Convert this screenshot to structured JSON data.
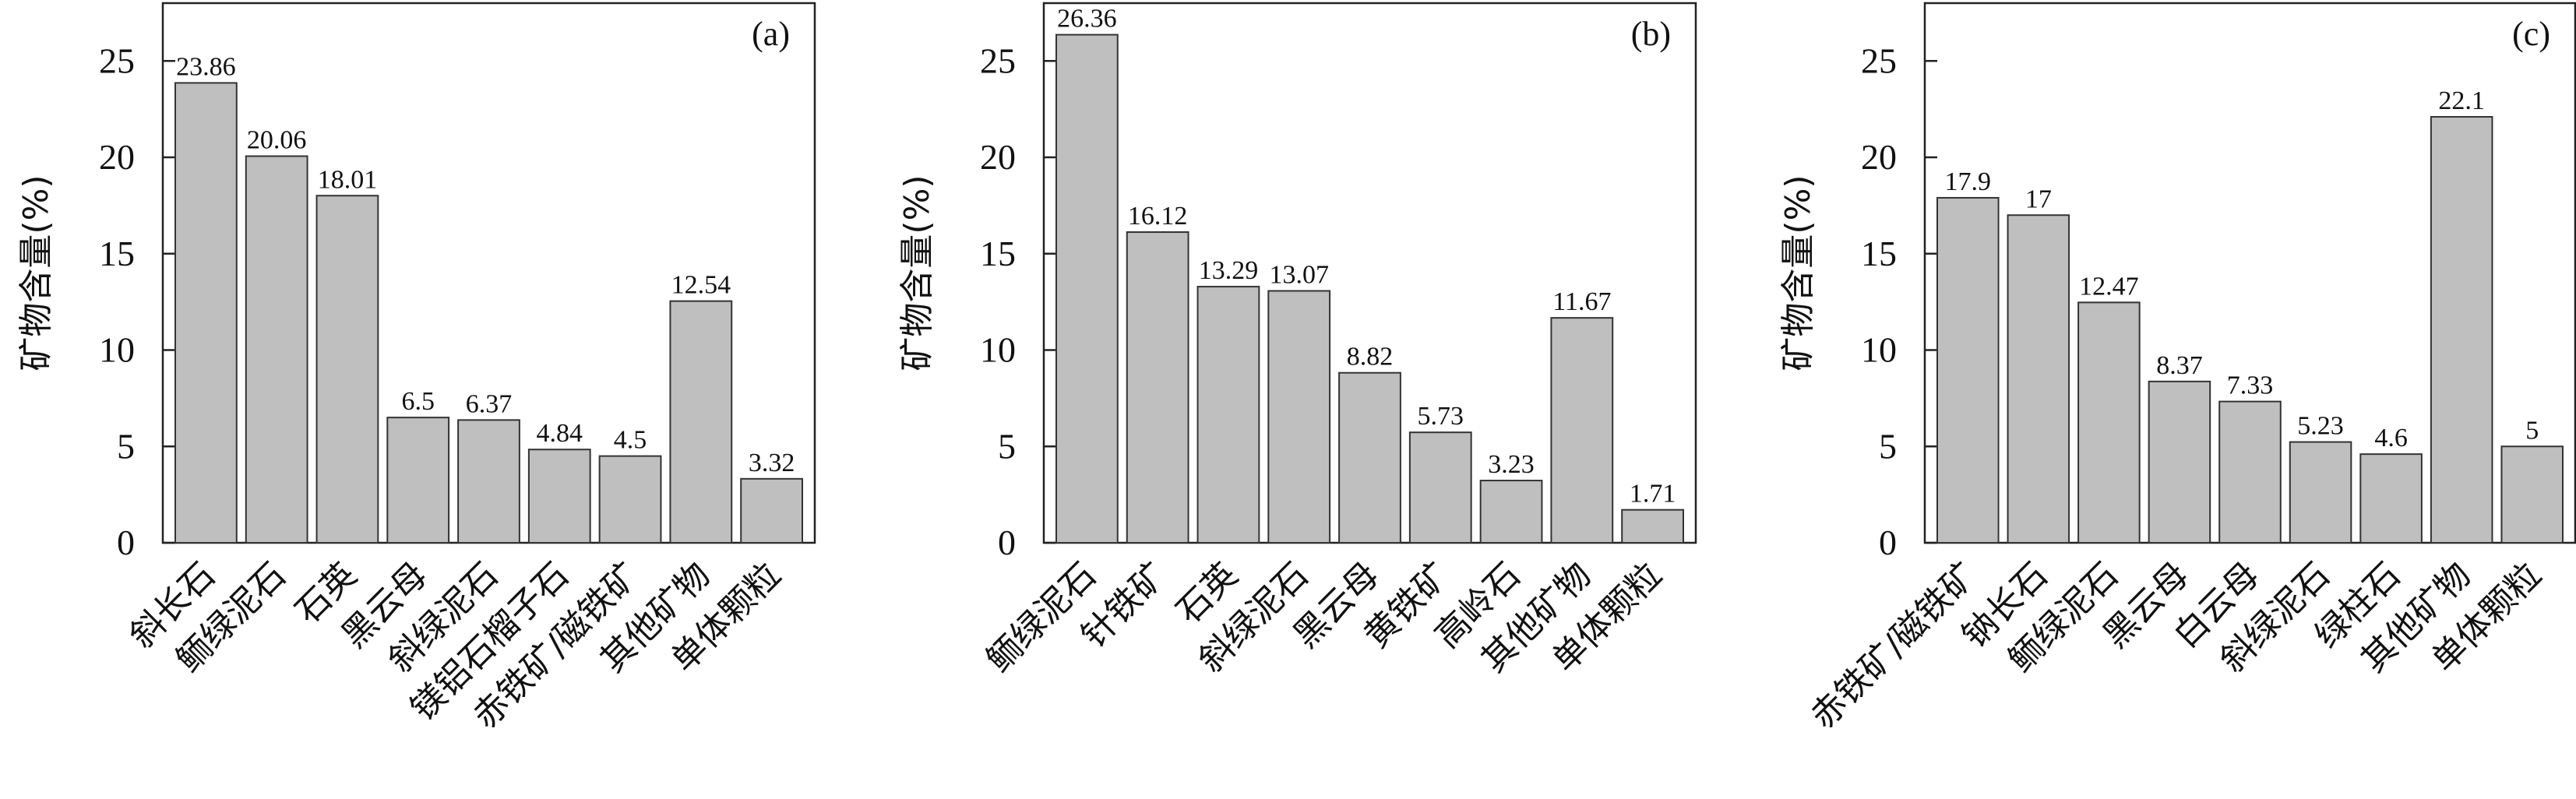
{
  "chart_data": [
    {
      "type": "bar",
      "panel_label": "(a)",
      "ylabel": "矿物含量(%)",
      "ylim": [
        0,
        28
      ],
      "yticks": [
        "0",
        "5",
        "10",
        "15",
        "20",
        "25"
      ],
      "grid": false,
      "bar_color": "#bfbfbf",
      "categories": [
        "斜长石",
        "鲕绿泥石",
        "石英",
        "黑云母",
        "斜绿泥石",
        "镁铝石榴子石",
        "赤铁矿/磁铁矿",
        "其他矿物",
        "单体颗粒"
      ],
      "values": [
        23.86,
        20.06,
        18.01,
        6.5,
        6.37,
        4.84,
        4.5,
        12.54,
        3.32
      ],
      "value_labels": [
        "23.86",
        "20.06",
        "18.01",
        "6.5",
        "6.37",
        "4.84",
        "4.5",
        "12.54",
        "3.32"
      ]
    },
    {
      "type": "bar",
      "panel_label": "(b)",
      "ylabel": "矿物含量(%)",
      "ylim": [
        0,
        28
      ],
      "yticks": [
        "0",
        "5",
        "10",
        "15",
        "20",
        "25"
      ],
      "grid": false,
      "bar_color": "#bfbfbf",
      "categories": [
        "鲕绿泥石",
        "针铁矿",
        "石英",
        "斜绿泥石",
        "黑云母",
        "黄铁矿",
        "高岭石",
        "其他矿物",
        "单体颗粒"
      ],
      "values": [
        26.36,
        16.12,
        13.29,
        13.07,
        8.82,
        5.73,
        3.23,
        11.67,
        1.71
      ],
      "value_labels": [
        "26.36",
        "16.12",
        "13.29",
        "13.07",
        "8.82",
        "5.73",
        "3.23",
        "11.67",
        "1.71"
      ]
    },
    {
      "type": "bar",
      "panel_label": "(c)",
      "ylabel": "矿物含量(%)",
      "ylim": [
        0,
        28
      ],
      "yticks": [
        "0",
        "5",
        "10",
        "15",
        "20",
        "25"
      ],
      "grid": false,
      "bar_color": "#bfbfbf",
      "categories": [
        "赤铁矿/磁铁矿",
        "钠长石",
        "鲕绿泥石",
        "黑云母",
        "白云母",
        "斜绿泥石",
        "绿柱石",
        "其他矿物",
        "单体颗粒"
      ],
      "values": [
        17.9,
        17,
        12.47,
        8.37,
        7.33,
        5.23,
        4.6,
        22.1,
        5
      ],
      "value_labels": [
        "17.9",
        "17",
        "12.47",
        "8.37",
        "7.33",
        "5.23",
        "4.6",
        "22.1",
        "5"
      ]
    }
  ]
}
